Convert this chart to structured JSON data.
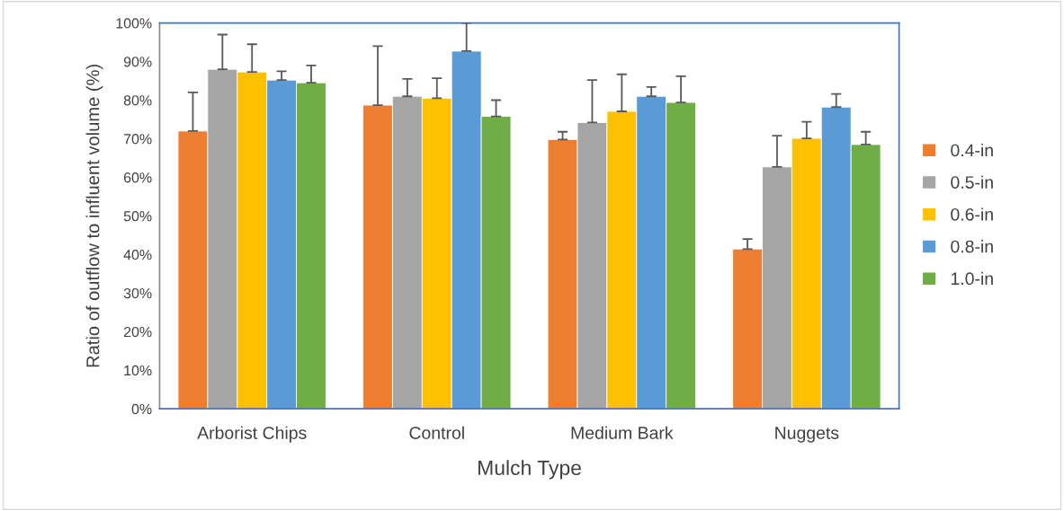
{
  "chart_data": {
    "type": "bar",
    "xlabel": "Mulch Type",
    "ylabel": "Ratio of outflow to influent volume (%)",
    "categories": [
      "Arborist Chips",
      "Control",
      "Medium Bark",
      "Nuggets"
    ],
    "series": [
      {
        "name": "0.4-in",
        "color": "#ed7d31",
        "values": [
          72,
          78.7,
          69.8,
          41.4
        ],
        "errors": [
          [
            72,
            82
          ],
          [
            78.7,
            94
          ],
          [
            69.8,
            71.8
          ],
          [
            41.4,
            44
          ]
        ]
      },
      {
        "name": "0.5-in",
        "color": "#a5a5a5",
        "values": [
          88,
          81,
          74.2,
          62.7
        ],
        "errors": [
          [
            88,
            97
          ],
          [
            81,
            85.5
          ],
          [
            74.2,
            85.2
          ],
          [
            62.7,
            70.8
          ]
        ]
      },
      {
        "name": "0.6-in",
        "color": "#ffc000",
        "values": [
          87.3,
          80.5,
          77.1,
          70.1
        ],
        "errors": [
          [
            87.3,
            94.5
          ],
          [
            80.5,
            85.7
          ],
          [
            77.1,
            86.7
          ],
          [
            70.1,
            74.4
          ]
        ]
      },
      {
        "name": "0.8-in",
        "color": "#5b9bd5",
        "values": [
          85.2,
          92.7,
          81,
          78.2
        ],
        "errors": [
          [
            85.2,
            87.5
          ],
          [
            92.7,
            100
          ],
          [
            81,
            83.4
          ],
          [
            78.2,
            81.6
          ]
        ]
      },
      {
        "name": "1.0-in",
        "color": "#70ad47",
        "values": [
          84.5,
          75.8,
          79.4,
          68.5
        ],
        "errors": [
          [
            84.5,
            89
          ],
          [
            75.8,
            80
          ],
          [
            79.4,
            86.2
          ],
          [
            68.5,
            71.8
          ]
        ]
      }
    ],
    "ylim": [
      0,
      100
    ],
    "yticks": [
      {
        "value": 0,
        "label": "0%"
      },
      {
        "value": 10,
        "label": "10%"
      },
      {
        "value": 20,
        "label": "20%"
      },
      {
        "value": 30,
        "label": "30%"
      },
      {
        "value": 40,
        "label": "40%"
      },
      {
        "value": 50,
        "label": "50%"
      },
      {
        "value": 60,
        "label": "60%"
      },
      {
        "value": 70,
        "label": "70%"
      },
      {
        "value": 80,
        "label": "80%"
      },
      {
        "value": 90,
        "label": "90%"
      },
      {
        "value": 100,
        "label": "100%"
      }
    ],
    "grid": false,
    "legend": "right"
  }
}
